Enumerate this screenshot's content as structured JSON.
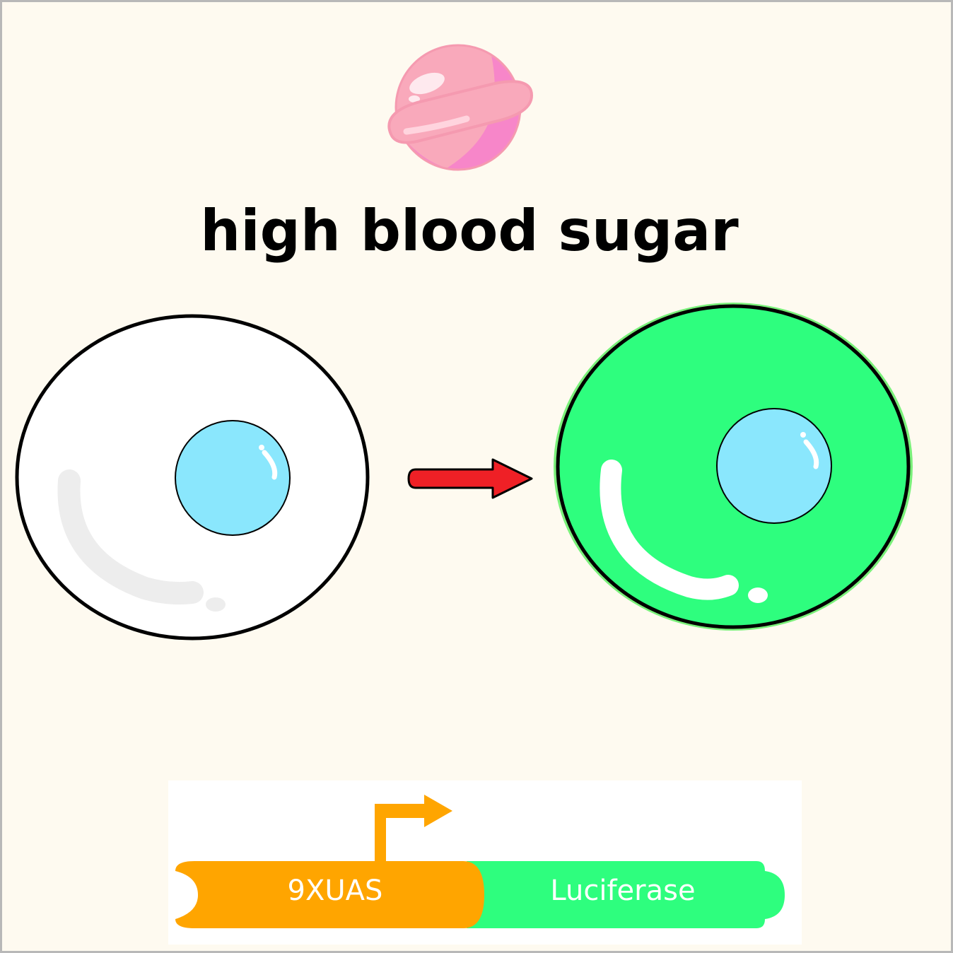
{
  "title": "high blood sugar",
  "construct": {
    "promoter_label": "9XUAS",
    "reporter_label": "Luciferase"
  },
  "colors": {
    "background": "#fefaf0",
    "frame": "#b8b8b8",
    "cell_before_fill": "#ffffff",
    "cell_after_fill": "#2efe7e",
    "cell_after_glow": "#7af07a",
    "nucleus_fill": "#8ae7fd",
    "arrow_fill": "#ef2026",
    "promoter_fill": "#ffa500",
    "reporter_fill": "#2efe7e",
    "candy_pink": "#f9a9bb",
    "candy_magenta": "#f786c9"
  },
  "icons": {
    "candy": "candy-planet-icon",
    "arrow": "right-arrow-icon",
    "promoter_arrow": "transcription-start-arrow-icon"
  }
}
